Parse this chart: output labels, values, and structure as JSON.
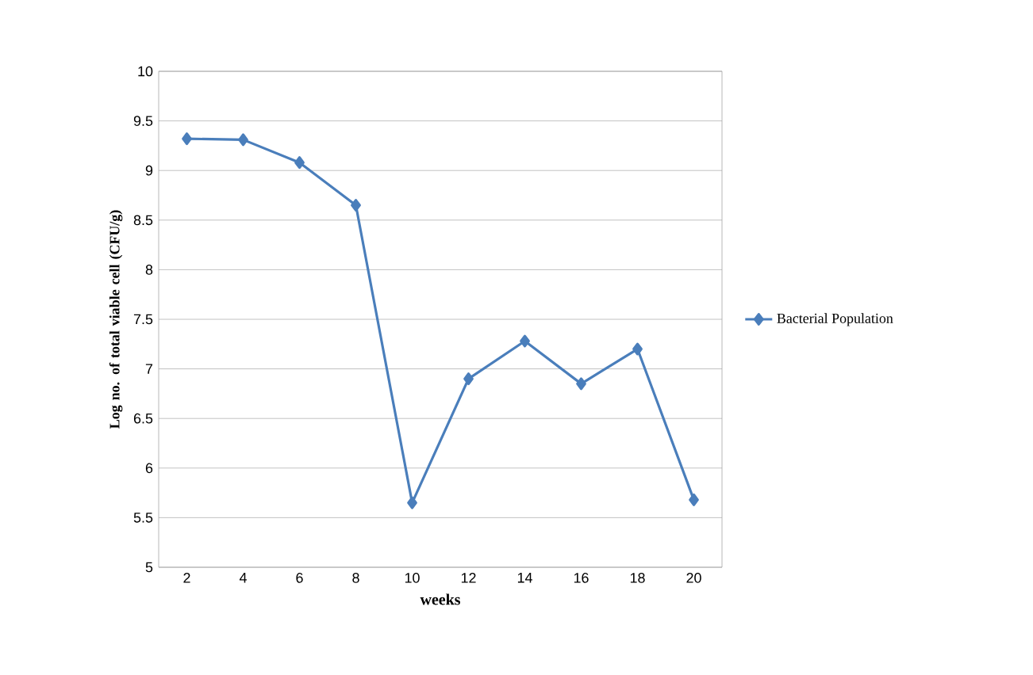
{
  "chart_data": {
    "type": "line",
    "xlabel": "weeks",
    "ylabel": "Log no. of total viable cell (CFU/g)",
    "categories": [
      "2",
      "4",
      "6",
      "8",
      "10",
      "12",
      "14",
      "16",
      "18",
      "20"
    ],
    "series": [
      {
        "name": "Bacterial Population",
        "color": "#4a7ebb",
        "values": [
          9.32,
          9.31,
          9.08,
          8.65,
          5.65,
          6.9,
          7.28,
          6.85,
          7.2,
          5.68
        ]
      }
    ],
    "ylim": [
      5,
      10
    ],
    "yticks": [
      5,
      5.5,
      6,
      6.5,
      7,
      7.5,
      8,
      8.5,
      9,
      9.5,
      10
    ],
    "grid": "y",
    "legend": "right",
    "marker": "diamond",
    "line_style": "solid"
  }
}
